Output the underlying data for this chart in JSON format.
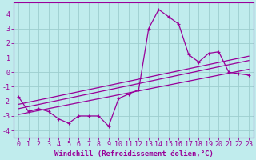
{
  "background_color": "#c0eced",
  "line_color": "#990099",
  "grid_color": "#9dcece",
  "xlabel": "Windchill (Refroidissement éolien,°C)",
  "xlabel_fontsize": 6.5,
  "tick_fontsize": 6,
  "xlim": [
    -0.5,
    23.5
  ],
  "ylim": [
    -4.5,
    4.8
  ],
  "yticks": [
    -4,
    -3,
    -2,
    -1,
    0,
    1,
    2,
    3,
    4
  ],
  "xticks": [
    0,
    1,
    2,
    3,
    4,
    5,
    6,
    7,
    8,
    9,
    10,
    11,
    12,
    13,
    14,
    15,
    16,
    17,
    18,
    19,
    20,
    21,
    22,
    23
  ],
  "series1_x": [
    0,
    1,
    2,
    3,
    4,
    5,
    6,
    7,
    8,
    9,
    10,
    11,
    12,
    13,
    14,
    15,
    16,
    17,
    18,
    19,
    20,
    21,
    22,
    23
  ],
  "series1_y": [
    -1.7,
    -2.7,
    -2.5,
    -2.7,
    -3.2,
    -3.5,
    -3.0,
    -3.0,
    -3.0,
    -3.7,
    -1.8,
    -1.5,
    -1.2,
    3.0,
    4.3,
    3.8,
    3.3,
    1.2,
    0.7,
    1.3,
    1.4,
    0.0,
    -0.1,
    -0.2
  ],
  "line2_x": [
    0,
    23
  ],
  "line2_y": [
    -2.5,
    0.8
  ],
  "line3_x": [
    0,
    23
  ],
  "line3_y": [
    -2.2,
    1.1
  ],
  "line4_x": [
    0,
    23
  ],
  "line4_y": [
    -2.9,
    0.2
  ]
}
